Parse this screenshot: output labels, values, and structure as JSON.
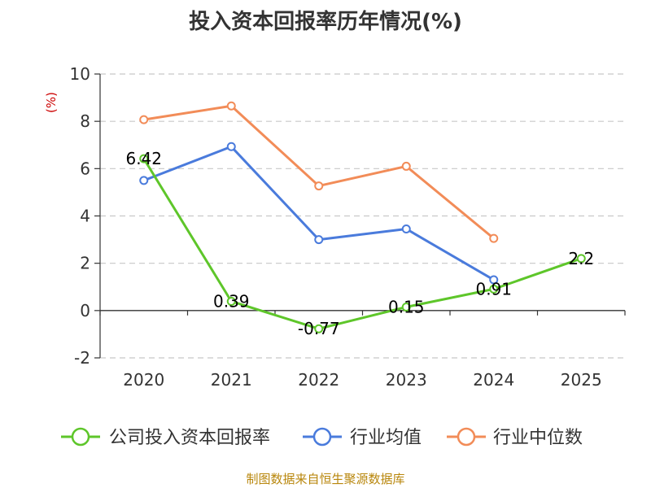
{
  "title": "投入资本回报率历年情况(%)",
  "source": "制图数据来自恒生聚源数据库",
  "chart_data": {
    "type": "line",
    "title": "投入资本回报率历年情况(%)",
    "ylabel": "(%)",
    "x": [
      "2020",
      "2021",
      "2022",
      "2023",
      "2024",
      "2025"
    ],
    "ylim": [
      -2,
      10
    ],
    "yticks": [
      -2,
      0,
      2,
      4,
      6,
      8,
      10
    ],
    "grid": true,
    "legend_position": "bottom",
    "series": [
      {
        "name": "公司投入资本回报率",
        "color": "#5ec62a",
        "values": [
          6.42,
          0.39,
          -0.77,
          0.15,
          0.91,
          2.2
        ],
        "labels": [
          "6.42",
          "0.39",
          "-0.77",
          "0.15",
          "0.91",
          "2.2"
        ]
      },
      {
        "name": "行业均值",
        "color": "#4a7bdc",
        "values": [
          5.5,
          6.93,
          3.0,
          3.45,
          1.3,
          null
        ]
      },
      {
        "name": "行业中位数",
        "color": "#f28c58",
        "values": [
          8.07,
          8.65,
          5.27,
          6.1,
          3.05,
          null
        ]
      }
    ]
  }
}
